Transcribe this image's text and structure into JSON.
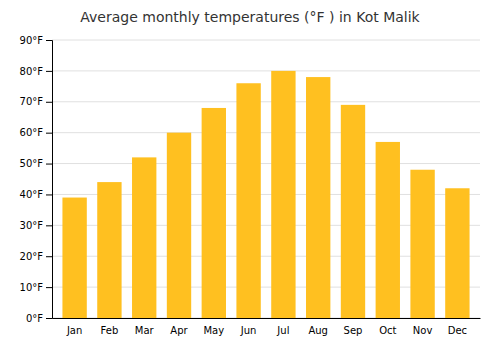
{
  "chart_data": {
    "type": "bar",
    "title": "Average monthly temperatures (°F ) in Kot Malik",
    "categories": [
      "Jan",
      "Feb",
      "Mar",
      "Apr",
      "May",
      "Jun",
      "Jul",
      "Aug",
      "Sep",
      "Oct",
      "Nov",
      "Dec"
    ],
    "values": [
      39,
      44,
      52,
      60,
      68,
      76,
      80,
      78,
      69,
      57,
      48,
      42
    ],
    "color": "#FFC020",
    "ylim": [
      0,
      90
    ],
    "yticks": [
      {
        "value": 0,
        "label": "0°F"
      },
      {
        "value": 10,
        "label": "10°F"
      },
      {
        "value": 20,
        "label": "20°F"
      },
      {
        "value": 30,
        "label": "30°F"
      },
      {
        "value": 40,
        "label": "40°F"
      },
      {
        "value": 50,
        "label": "50°F"
      },
      {
        "value": 60,
        "label": "60°F"
      },
      {
        "value": 70,
        "label": "70°F"
      },
      {
        "value": 80,
        "label": "80°F"
      },
      {
        "value": 90,
        "label": "90°F"
      }
    ],
    "grid": true
  }
}
